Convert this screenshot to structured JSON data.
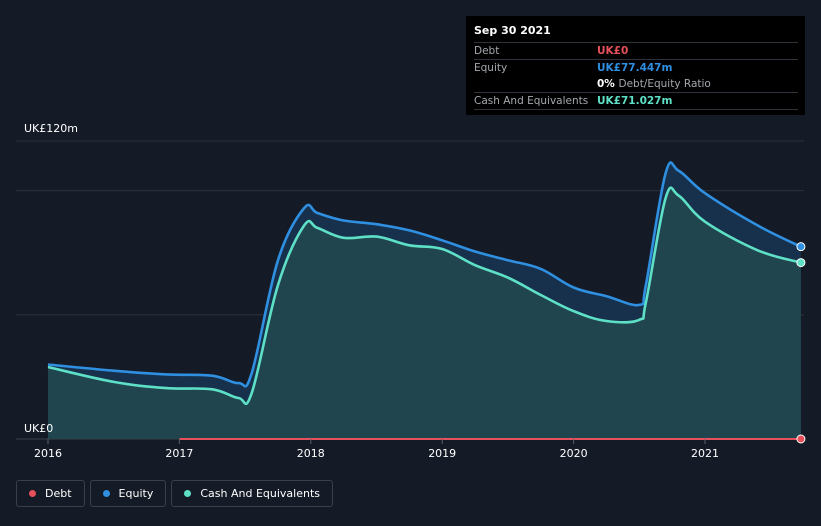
{
  "chart_data": {
    "type": "area",
    "x_ticks": [
      "2016",
      "2017",
      "2018",
      "2019",
      "2020",
      "2021"
    ],
    "y_labels": [
      "UK£120m",
      "UK£0"
    ],
    "ylim": [
      0,
      120
    ],
    "grid": true,
    "legend_position": "bottom-left",
    "series": [
      {
        "name": "Debt",
        "color": "#e5505a",
        "points": [
          [
            2017.0,
            0
          ],
          [
            2021.73,
            0
          ]
        ]
      },
      {
        "name": "Equity",
        "color": "#2f8fe0",
        "points": [
          [
            2016.0,
            30
          ],
          [
            2016.5,
            27.5
          ],
          [
            2016.9,
            26
          ],
          [
            2017.25,
            25.5
          ],
          [
            2017.45,
            22.5
          ],
          [
            2017.55,
            26.5
          ],
          [
            2017.75,
            72
          ],
          [
            2017.95,
            93
          ],
          [
            2018.05,
            91
          ],
          [
            2018.25,
            88
          ],
          [
            2018.5,
            86.5
          ],
          [
            2018.75,
            84
          ],
          [
            2019.0,
            80
          ],
          [
            2019.25,
            75.5
          ],
          [
            2019.5,
            72
          ],
          [
            2019.75,
            68.5
          ],
          [
            2020.0,
            61
          ],
          [
            2020.25,
            57.5
          ],
          [
            2020.5,
            54
          ],
          [
            2020.55,
            62
          ],
          [
            2020.7,
            107
          ],
          [
            2020.8,
            108
          ],
          [
            2021.0,
            99
          ],
          [
            2021.4,
            86
          ],
          [
            2021.73,
            77.447
          ]
        ]
      },
      {
        "name": "Cash And Equivalents",
        "color": "#5ee0c7",
        "points": [
          [
            2016.0,
            29
          ],
          [
            2016.5,
            23
          ],
          [
            2016.9,
            20.5
          ],
          [
            2017.25,
            20
          ],
          [
            2017.45,
            16.5
          ],
          [
            2017.55,
            18.5
          ],
          [
            2017.75,
            62
          ],
          [
            2017.95,
            86
          ],
          [
            2018.05,
            85
          ],
          [
            2018.25,
            81
          ],
          [
            2018.5,
            81.5
          ],
          [
            2018.75,
            78
          ],
          [
            2019.0,
            76.5
          ],
          [
            2019.25,
            70
          ],
          [
            2019.5,
            65
          ],
          [
            2019.75,
            58
          ],
          [
            2020.0,
            51.5
          ],
          [
            2020.25,
            47.5
          ],
          [
            2020.5,
            48
          ],
          [
            2020.55,
            55
          ],
          [
            2020.7,
            97
          ],
          [
            2020.8,
            98
          ],
          [
            2021.0,
            87.5
          ],
          [
            2021.4,
            76
          ],
          [
            2021.73,
            71.027
          ]
        ]
      }
    ]
  },
  "tooltip": {
    "date": "Sep 30 2021",
    "debt_label": "Debt",
    "debt_value": "UK£0",
    "equity_label": "Equity",
    "equity_value": "UK£77.447m",
    "ratio_value": "0%",
    "ratio_label": "Debt/Equity Ratio",
    "cash_label": "Cash And Equivalents",
    "cash_value": "UK£71.027m"
  },
  "legend": [
    {
      "label": "Debt",
      "color": "#e5505a"
    },
    {
      "label": "Equity",
      "color": "#2f8fe0"
    },
    {
      "label": "Cash And Equivalents",
      "color": "#5ee0c7"
    }
  ]
}
